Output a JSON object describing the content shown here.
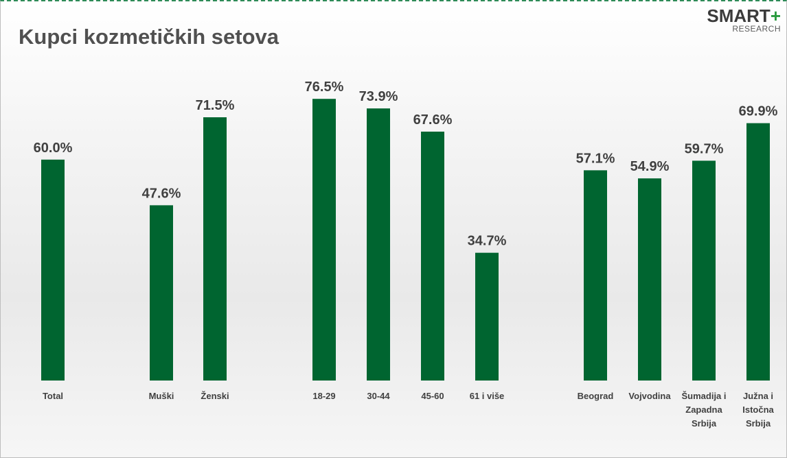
{
  "title": "Kupci kozmetičkih setova",
  "logo": {
    "main": "SMART",
    "plus": "+",
    "sub": "RESEARCH"
  },
  "colors": {
    "bar": "#006530",
    "text": "#404040",
    "title": "#505050",
    "accent": "#2a9a3e"
  },
  "chart_data": {
    "type": "bar",
    "title": "Kupci kozmetičkih setova",
    "xlabel": "",
    "ylabel": "",
    "ylim": [
      0,
      100
    ],
    "grid": false,
    "legend": "none",
    "categories": [
      [
        "Total"
      ],
      [
        "Muški"
      ],
      [
        "Ženski"
      ],
      [
        "18-29"
      ],
      [
        "30-44"
      ],
      [
        "45-60"
      ],
      [
        "61 i više"
      ],
      [
        "Beograd"
      ],
      [
        "Vojvodina"
      ],
      [
        "Šumadija i",
        "Zapadna",
        "Srbija"
      ],
      [
        "Južna i",
        "Istočna",
        "Srbija"
      ]
    ],
    "values": [
      60.0,
      47.6,
      71.5,
      76.5,
      73.9,
      67.6,
      34.7,
      57.1,
      54.9,
      59.7,
      69.9
    ],
    "value_labels": [
      "60.0%",
      "47.6%",
      "71.5%",
      "76.5%",
      "73.9%",
      "67.6%",
      "34.7%",
      "57.1%",
      "54.9%",
      "59.7%",
      "69.9%"
    ]
  }
}
